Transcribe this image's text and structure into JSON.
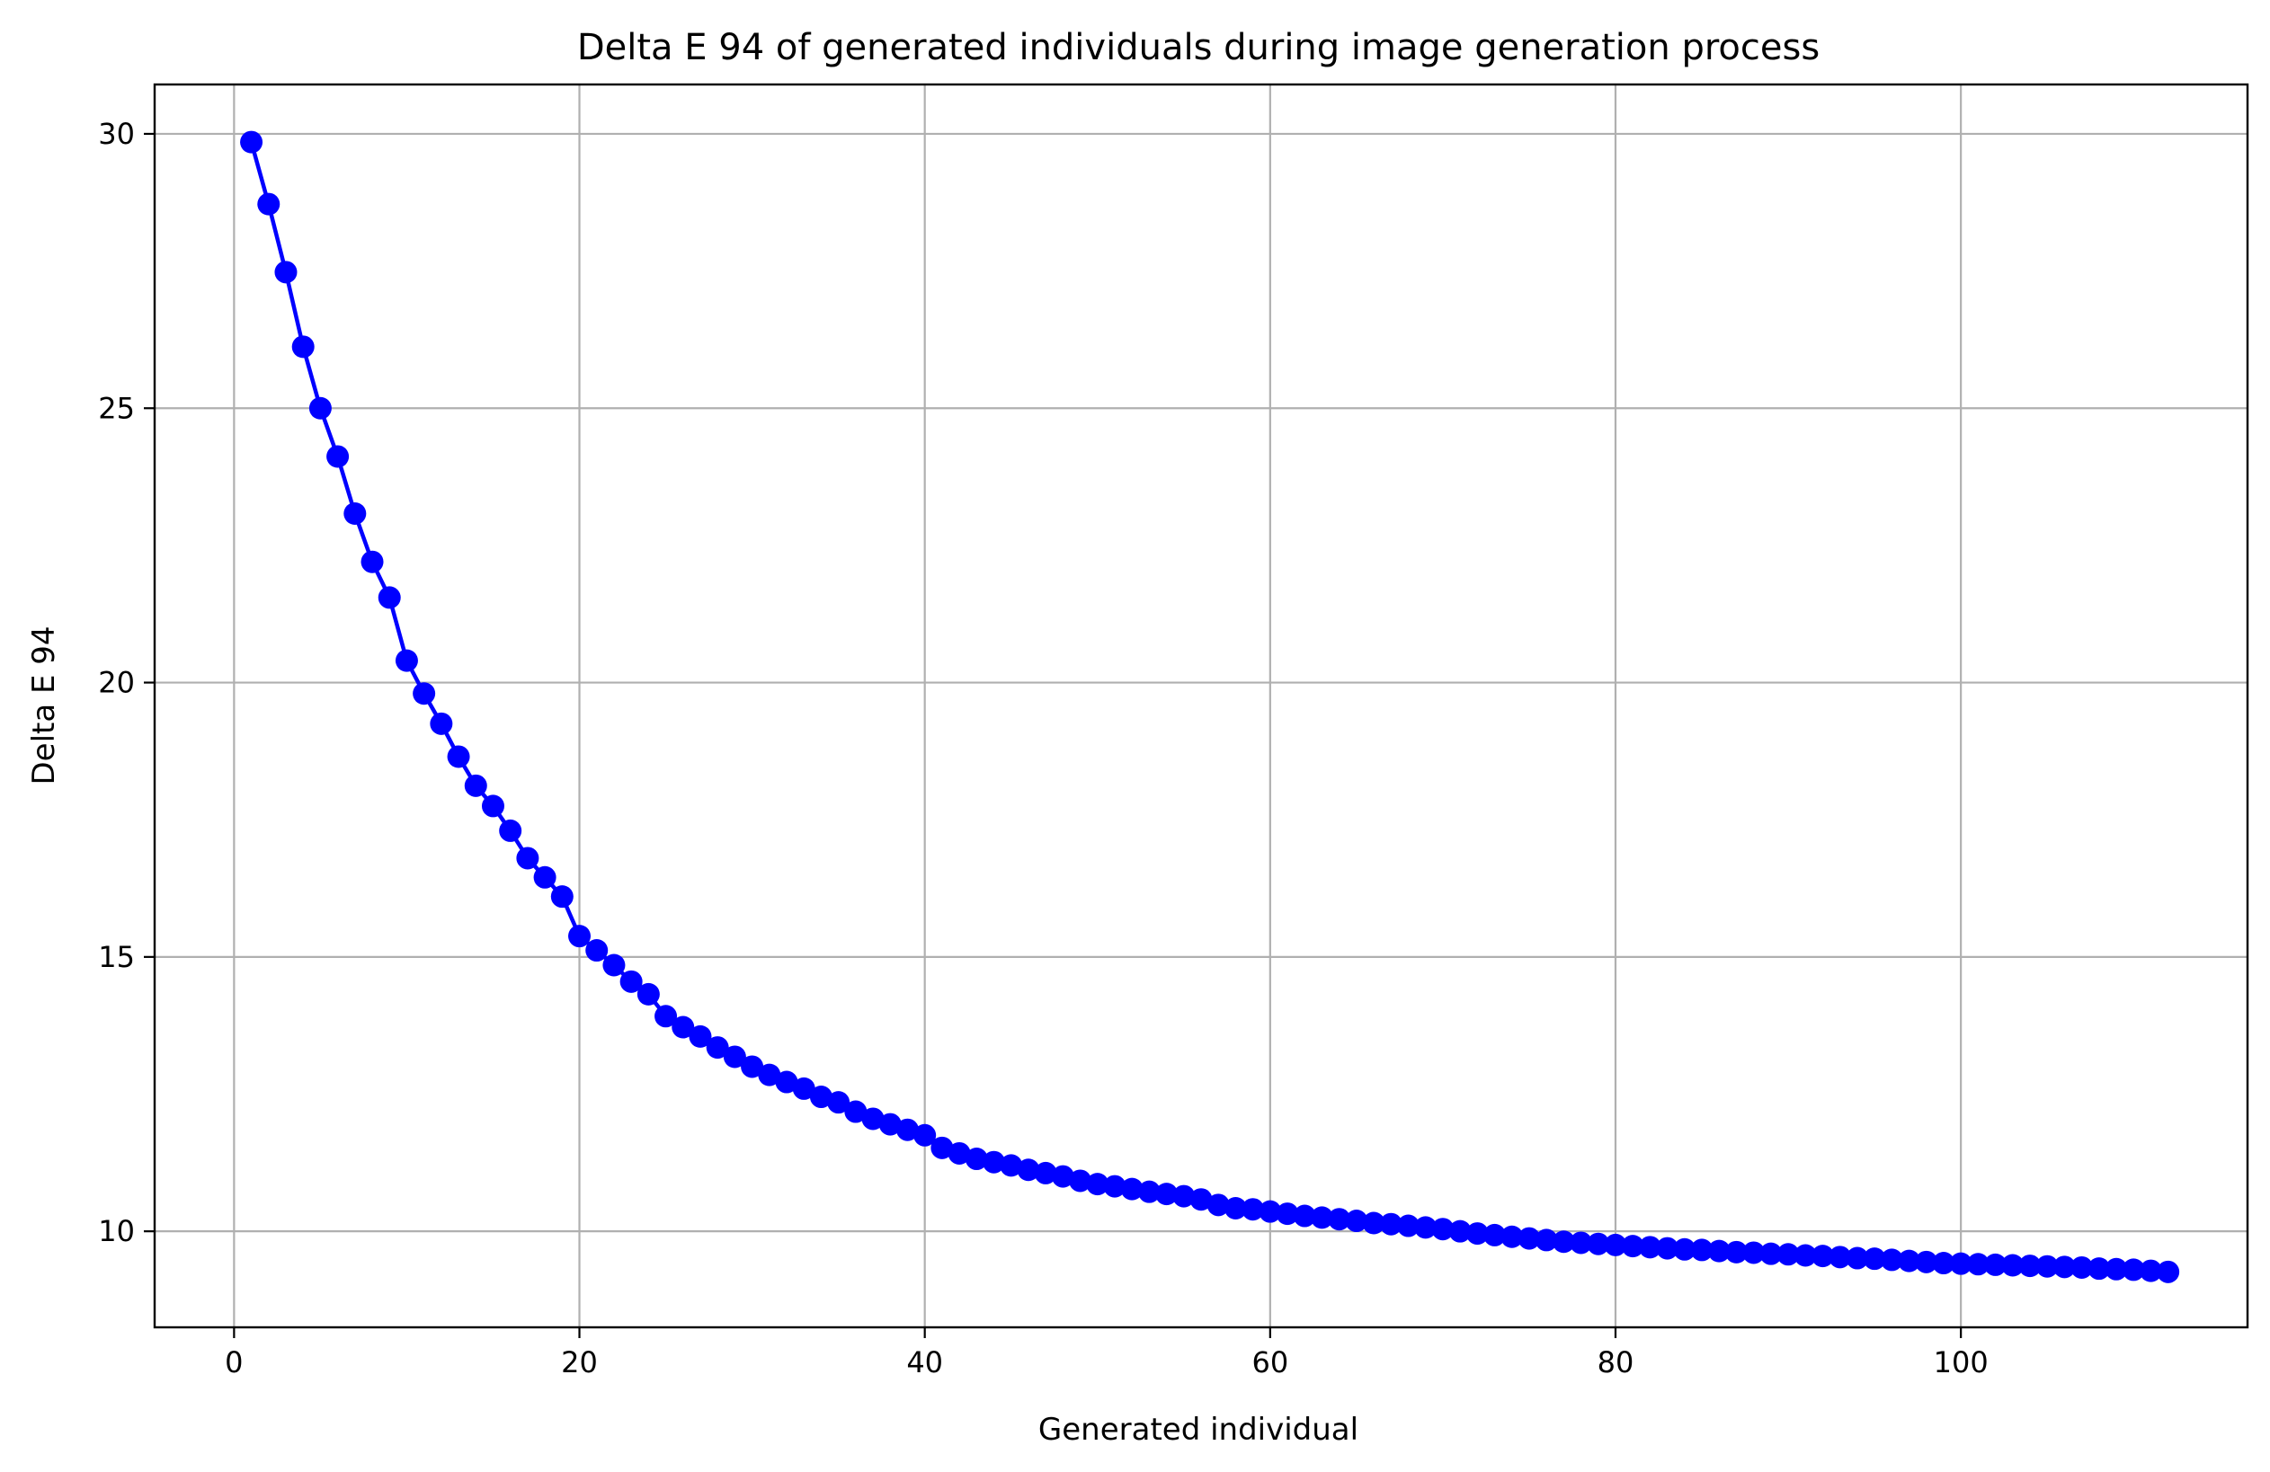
{
  "chart_data": {
    "type": "line",
    "title": "Delta E 94 of generated individuals during image generation process",
    "xlabel": "Generated individual",
    "ylabel": "Delta E 94",
    "xlim": [
      -4.6,
      116.6
    ],
    "ylim": [
      8.25,
      30.9
    ],
    "xticks": [
      0,
      20,
      40,
      60,
      80,
      100
    ],
    "yticks": [
      10,
      15,
      20,
      25,
      30
    ],
    "xtick_labels": [
      "0",
      "20",
      "40",
      "60",
      "80",
      "100"
    ],
    "ytick_labels": [
      "10",
      "15",
      "20",
      "25",
      "30"
    ],
    "grid": true,
    "marker": "circle",
    "colors": {
      "series": "#0000ff",
      "grid": "#b0b0b0",
      "axes": "#000000"
    },
    "series": [
      {
        "x": [
          1,
          2,
          3,
          4,
          5,
          6,
          7,
          8,
          9,
          10,
          11,
          12,
          13,
          14,
          15,
          16,
          17,
          18,
          19,
          20,
          21,
          22,
          23,
          24,
          25,
          26,
          27,
          28,
          29,
          30,
          31,
          32,
          33,
          34,
          35,
          36,
          37,
          38,
          39,
          40,
          41,
          42,
          43,
          44,
          45,
          46,
          47,
          48,
          49,
          50,
          51,
          52,
          53,
          54,
          55,
          56,
          57,
          58,
          59,
          60,
          61,
          62,
          63,
          64,
          65,
          66,
          67,
          68,
          69,
          70,
          71,
          72,
          73,
          74,
          75,
          76,
          77,
          78,
          79,
          80,
          81,
          82,
          83,
          84,
          85,
          86,
          87,
          88,
          89,
          90,
          91,
          92,
          93,
          94,
          95,
          96,
          97,
          98,
          99,
          100,
          101,
          102,
          103,
          104,
          105,
          106,
          107,
          108,
          109,
          110,
          111,
          112
        ],
        "values": [
          29.85,
          28.72,
          27.48,
          26.12,
          25.0,
          24.12,
          23.08,
          22.2,
          21.55,
          20.4,
          19.8,
          19.25,
          18.65,
          18.12,
          17.75,
          17.3,
          16.8,
          16.45,
          16.1,
          15.38,
          15.12,
          14.85,
          14.55,
          14.32,
          13.92,
          13.72,
          13.55,
          13.35,
          13.18,
          13.0,
          12.85,
          12.72,
          12.6,
          12.45,
          12.35,
          12.18,
          12.05,
          11.95,
          11.85,
          11.75,
          11.52,
          11.42,
          11.32,
          11.26,
          11.2,
          11.12,
          11.06,
          11.0,
          10.92,
          10.86,
          10.82,
          10.77,
          10.72,
          10.68,
          10.64,
          10.58,
          10.48,
          10.42,
          10.4,
          10.36,
          10.32,
          10.28,
          10.25,
          10.22,
          10.19,
          10.15,
          10.13,
          10.1,
          10.07,
          10.04,
          10.0,
          9.96,
          9.93,
          9.9,
          9.87,
          9.84,
          9.81,
          9.79,
          9.77,
          9.75,
          9.73,
          9.71,
          9.69,
          9.67,
          9.66,
          9.64,
          9.62,
          9.61,
          9.59,
          9.58,
          9.56,
          9.55,
          9.53,
          9.51,
          9.5,
          9.48,
          9.46,
          9.44,
          9.42,
          9.41,
          9.4,
          9.39,
          9.38,
          9.37,
          9.36,
          9.35,
          9.34,
          9.32,
          9.31,
          9.3,
          9.28,
          9.26
        ]
      }
    ]
  }
}
